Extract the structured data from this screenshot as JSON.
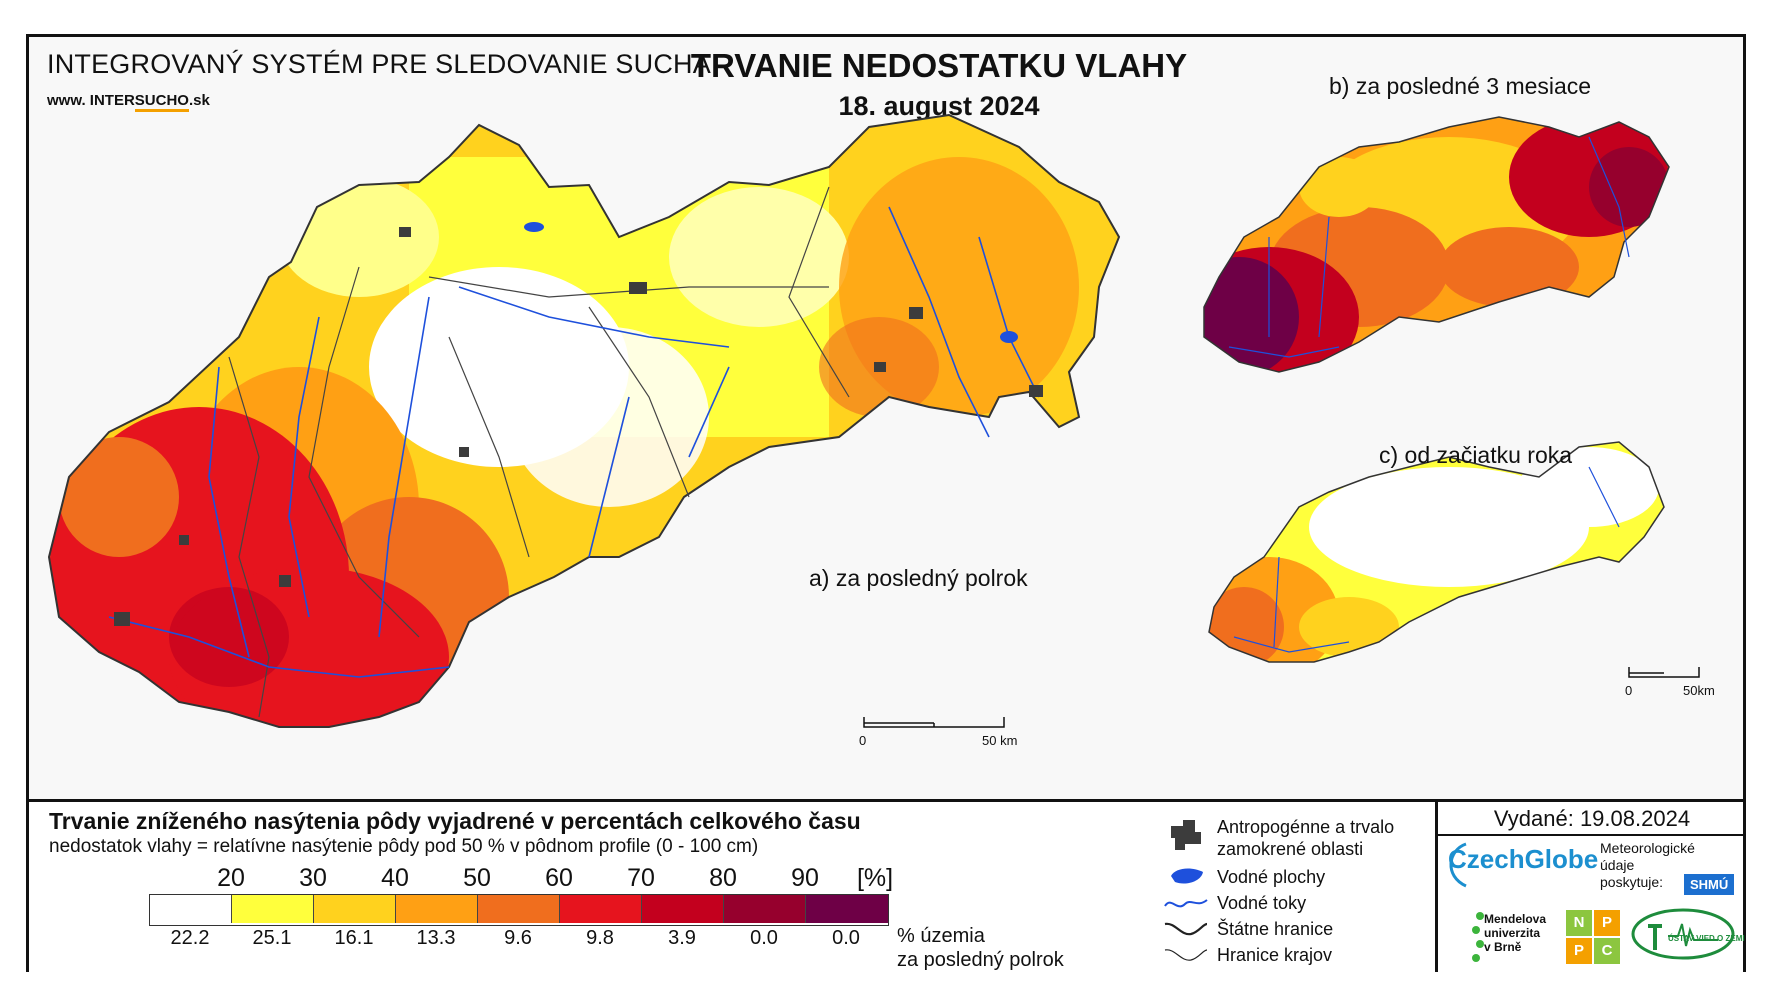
{
  "header": {
    "system_title": "INTEGROVANÝ SYSTÉM PRE SLEDOVANIE SUCHA",
    "website_prefix": "www. INTER",
    "website_highlight": "SUCHO",
    "website_suffix": ".sk",
    "main_title": "TRVANIE NEDOSTATKU VLAHY",
    "date": "18. august 2024"
  },
  "panels": {
    "a_label": "a) za posledný polrok",
    "b_label": "b) za posledné 3 mesiace",
    "c_label": "c) od začiatku roka"
  },
  "scale_bars": {
    "main": {
      "start": "0",
      "end": "50 km"
    },
    "small": {
      "start": "0",
      "end": "50km"
    }
  },
  "legend": {
    "title": "Trvanie zníženého nasýtenia pôdy vyjadrené v percentách celkového času",
    "subtitle": "nedostatok vlahy = relatívne nasýtenie pôdy pod 50 % v pôdnom profile (0 - 100 cm)",
    "ticks": [
      "20",
      "30",
      "40",
      "50",
      "60",
      "70",
      "80",
      "90",
      "[%]"
    ],
    "colors": [
      "#ffffff",
      "#ffff3c",
      "#ffd21e",
      "#ffa014",
      "#f06e1e",
      "#e6141e",
      "#c3001e",
      "#96002d",
      "#6e0046"
    ],
    "percentages": [
      "22.2",
      "25.1",
      "16.1",
      "13.3",
      "9.6",
      "9.8",
      "3.9",
      "0.0",
      "0.0"
    ],
    "pct_label_1": "% územia",
    "pct_label_2": "za posledný polrok"
  },
  "map_legend": {
    "anthropogenic_1": "Antropogénne a trvalo",
    "anthropogenic_2": "zamokrené oblasti",
    "water_bodies": "Vodné plochy",
    "rivers": "Vodné toky",
    "state_border": "Štátne hranice",
    "region_border": "Hranice krajov",
    "river_color": "#1e50dc",
    "anthro_color": "#3c3c3c"
  },
  "credits": {
    "issued": "Vydané: 19.08.2024",
    "czechglobe": "CzechGlobe",
    "meteo_1": "Meteorologické",
    "meteo_2": "údaje",
    "meteo_3": "poskytuje:",
    "shmu": "SHMÚ",
    "mendel_1": "Mendelova",
    "mendel_2": "univerzita",
    "mendel_3": "v Brně",
    "nppc": [
      "N",
      "P",
      "P",
      "C"
    ],
    "uvz": "ÚSTAV VIED O ZEMI"
  }
}
